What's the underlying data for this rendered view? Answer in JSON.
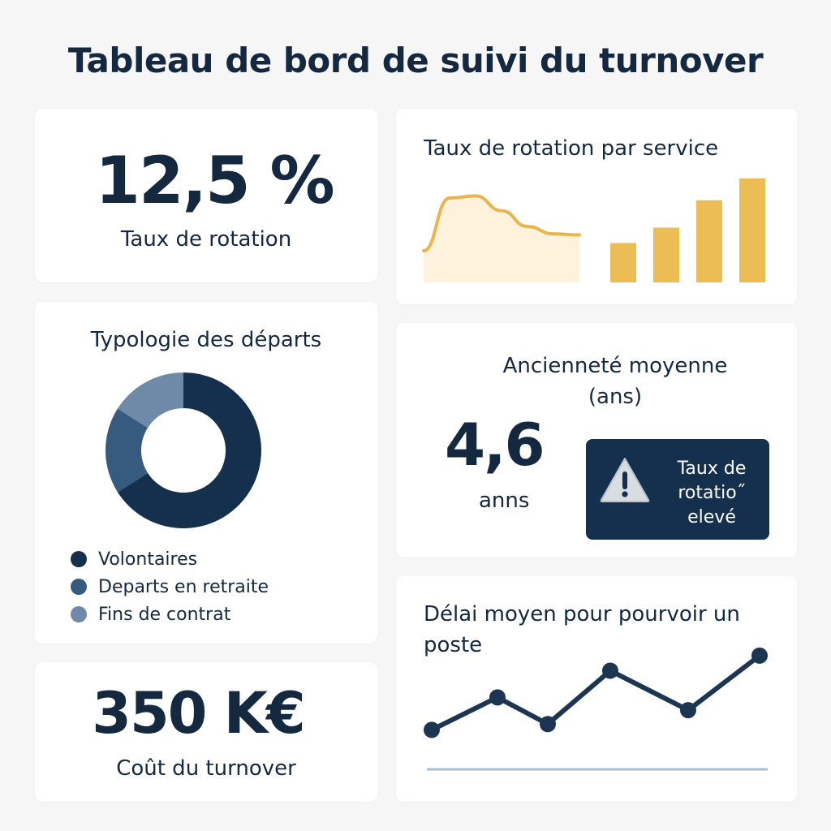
{
  "header": {
    "title": "Tableau de bord de suivi du turnover"
  },
  "rate_card": {
    "value": "12,5 %",
    "label": "Taux de rotation"
  },
  "department_card": {
    "title": "Taux de rotation par service"
  },
  "types_card": {
    "title": "Typologie des départs",
    "legend": [
      {
        "label": "Volontaires",
        "color": "#14304d"
      },
      {
        "label": "Departs en retraite",
        "color": "#375a7f"
      },
      {
        "label": "Fins de contrat",
        "color": "#6e8aa8"
      }
    ]
  },
  "tenure_card": {
    "title": "Ancienneté moyenne (ans)",
    "value": "4,6",
    "unit": "anns",
    "alert": {
      "icon": "warning-icon",
      "text": "Taux de rotatio˝ elevé"
    }
  },
  "cost_card": {
    "value": "350 K€",
    "label": "Coût du turnover"
  },
  "delay_card": {
    "title": "Délai moyen pour pourvoir un poste"
  },
  "colors": {
    "navy": "#14283f",
    "accent_gold": "#ecbc55",
    "area_fill": "#fdf3dc",
    "line_gold": "#e9b54a",
    "baseline": "#a9bfd1"
  },
  "chart_data": [
    {
      "type": "area",
      "series": [
        {
          "values": [
            3,
            8,
            8.2,
            6.8,
            5.3,
            4.6,
            4.5
          ]
        }
      ],
      "ylim": [
        0,
        10
      ]
    },
    {
      "type": "bar",
      "values": [
        3.6,
        5.0,
        7.5,
        9.5
      ],
      "ylim": [
        0,
        10
      ]
    },
    {
      "type": "pie",
      "values": [
        66,
        18,
        16
      ],
      "categories": [
        "Volontaires",
        "Departs en retraite",
        "Fins de contrat"
      ]
    },
    {
      "type": "line",
      "values": [
        2,
        4.8,
        2.5,
        7.1,
        3.7,
        8.4
      ],
      "ylim": [
        0,
        10
      ]
    }
  ]
}
